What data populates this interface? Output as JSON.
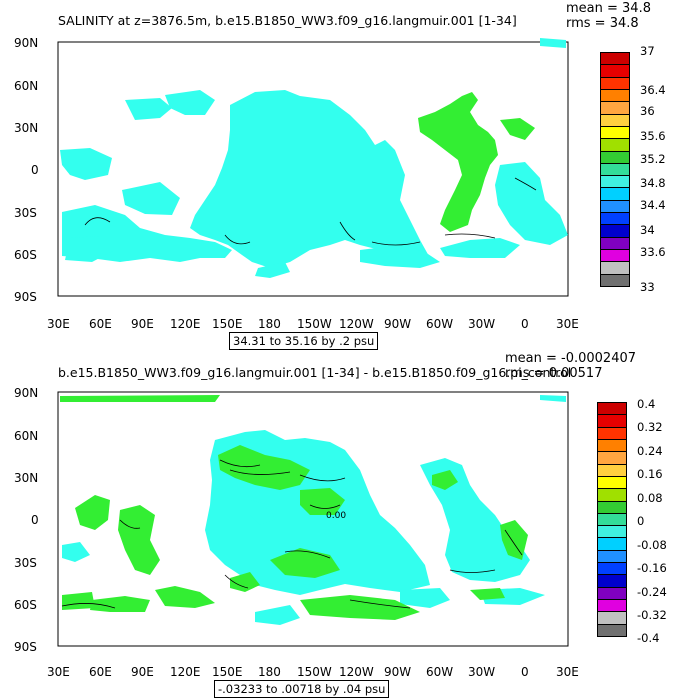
{
  "panel1": {
    "title": "SALINITY at z=3876.5m, b.e15.B1850_WW3.f09_g16.langmuir.001 [1-34]",
    "mean": "mean = 34.8",
    "rms": "rms = 34.8",
    "range": "34.31 to 35.16 by .2 psu",
    "lat_labels": [
      "90N",
      "60N",
      "30N",
      "0",
      "30S",
      "60S",
      "90S"
    ],
    "lon_labels": [
      "30E",
      "60E",
      "90E",
      "120E",
      "150E",
      "180",
      "150W",
      "120W",
      "90W",
      "60W",
      "30W",
      "0",
      "30E"
    ],
    "colorbar_labels": [
      "37",
      "36.4",
      "36",
      "35.6",
      "35.2",
      "34.8",
      "34.4",
      "34",
      "33.6",
      "33"
    ],
    "colorbar_colors": [
      "#cc0000",
      "#e60000",
      "#ff3300",
      "#ff8000",
      "#ffa640",
      "#ffd040",
      "#ffff00",
      "#a0e000",
      "#33cc33",
      "#33dd99",
      "#40f0e0",
      "#00d0ff",
      "#2090ff",
      "#0040ff",
      "#0000cc",
      "#8000c0",
      "#e000e0",
      "#c0c0c0",
      "#707070"
    ]
  },
  "panel2": {
    "title": "b.e15.B1850_WW3.f09_g16.langmuir.001 [1-34] - b.e15.B1850.f09_g16.pi_control",
    "mean": "mean = -0.0002407",
    "rms": "rms = 0.00517",
    "range": "-.03233 to .00718 by .04 psu",
    "contour_label": "0.00",
    "lat_labels": [
      "90N",
      "60N",
      "30N",
      "0",
      "30S",
      "60S",
      "90S"
    ],
    "lon_labels": [
      "30E",
      "60E",
      "90E",
      "120E",
      "150E",
      "180",
      "150W",
      "120W",
      "90W",
      "60W",
      "30W",
      "0",
      "30E"
    ],
    "colorbar_labels": [
      "0.4",
      "0.32",
      "0.24",
      "0.16",
      "0.08",
      "0",
      "-0.08",
      "-0.16",
      "-0.24",
      "-0.32",
      "-0.4"
    ],
    "colorbar_colors": [
      "#cc0000",
      "#e60000",
      "#ff3300",
      "#ff8000",
      "#ffa640",
      "#ffd040",
      "#ffff00",
      "#a0e000",
      "#33cc33",
      "#33dd99",
      "#40f0e0",
      "#00d0ff",
      "#2090ff",
      "#0040ff",
      "#0000cc",
      "#8000c0",
      "#e000e0",
      "#c0c0c0",
      "#707070"
    ]
  },
  "colors": {
    "cyan_fill": "#33ffee",
    "green_fill": "#33ee33"
  }
}
